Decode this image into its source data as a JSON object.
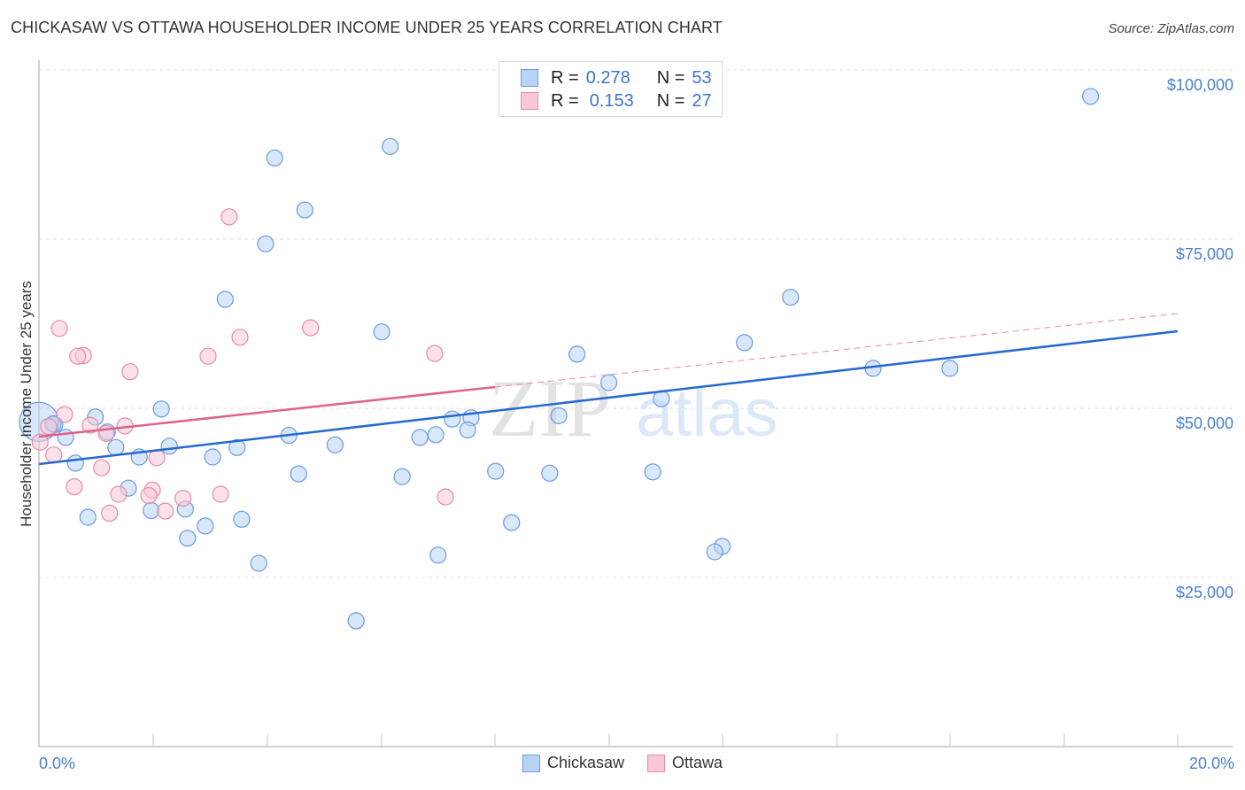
{
  "header": {
    "title": "CHICKASAW VS OTTAWA HOUSEHOLDER INCOME UNDER 25 YEARS CORRELATION CHART",
    "source": "Source: ZipAtlas.com"
  },
  "legend": {
    "rows": [
      {
        "series": "Chickasaw",
        "r_label": "R =",
        "r_value": "0.278",
        "n_label": "N =",
        "n_value": "53",
        "color": "#b8d3f5",
        "border": "#6a9be0"
      },
      {
        "series": "Ottawa",
        "r_label": "R =",
        "r_value": "0.153",
        "n_label": "N =",
        "n_value": "27",
        "color": "#f9c8d6",
        "border": "#e88aa8"
      }
    ]
  },
  "bottom_legend": [
    {
      "label": "Chickasaw",
      "color": "#b8d3f5",
      "border": "#6a9be0"
    },
    {
      "label": "Ottawa",
      "color": "#f9c8d6",
      "border": "#e88aa8"
    }
  ],
  "axes": {
    "ylabel": "Householder Income Under 25 years",
    "yticks": [
      "$100,000",
      "$75,000",
      "$50,000",
      "$25,000"
    ],
    "xticks": [
      "0.0%",
      "20.0%"
    ]
  },
  "watermark": {
    "zip": "ZIP",
    "atlas": "atlas"
  },
  "colors": {
    "blue_line": "#2469d0",
    "pink_line": "#e0608e",
    "blue_fill": "#b8d3f5",
    "pink_fill": "#f9c8d6",
    "tick_text": "#4a7fd4"
  },
  "chart_data": {
    "type": "scatter",
    "title": "CHICKASAW VS OTTAWA HOUSEHOLDER INCOME UNDER 25 YEARS CORRELATION CHART",
    "xlabel": "",
    "ylabel": "Householder Income Under 25 years",
    "xlim": [
      0,
      20
    ],
    "ylim": [
      0,
      100000
    ],
    "x_unit": "%",
    "grid": true,
    "legend_position": "top-center and bottom",
    "series": [
      {
        "name": "Chickasaw",
        "R": 0.278,
        "N": 53,
        "trend": {
          "x": [
            0,
            20
          ],
          "y": [
            41800,
            61500
          ]
        },
        "points": [
          [
            18.47,
            96100
          ],
          [
            6.17,
            88700
          ],
          [
            4.14,
            87000
          ],
          [
            4.67,
            79300
          ],
          [
            3.98,
            74300
          ],
          [
            13.2,
            66400
          ],
          [
            3.27,
            66100
          ],
          [
            6.02,
            61300
          ],
          [
            12.39,
            59700
          ],
          [
            9.45,
            58000
          ],
          [
            14.65,
            55900
          ],
          [
            16.0,
            55900
          ],
          [
            10.01,
            53800
          ],
          [
            10.93,
            51400
          ],
          [
            2.15,
            49900
          ],
          [
            0.99,
            48700
          ],
          [
            9.13,
            48900
          ],
          [
            7.26,
            48400
          ],
          [
            7.59,
            48600
          ],
          [
            0.28,
            47600
          ],
          [
            1.2,
            46500
          ],
          [
            7.53,
            46800
          ],
          [
            4.39,
            46000
          ],
          [
            6.69,
            45700
          ],
          [
            6.97,
            46100
          ],
          [
            0.47,
            45700
          ],
          [
            2.29,
            44400
          ],
          [
            1.35,
            44200
          ],
          [
            3.48,
            44200
          ],
          [
            5.2,
            44600
          ],
          [
            1.76,
            42800
          ],
          [
            3.05,
            42800
          ],
          [
            0.64,
            41900
          ],
          [
            4.56,
            40300
          ],
          [
            6.38,
            39900
          ],
          [
            8.02,
            40700
          ],
          [
            8.97,
            40400
          ],
          [
            10.78,
            40600
          ],
          [
            1.57,
            38200
          ],
          [
            1.97,
            34900
          ],
          [
            2.57,
            35100
          ],
          [
            0.86,
            33900
          ],
          [
            3.56,
            33600
          ],
          [
            8.3,
            33100
          ],
          [
            2.92,
            32600
          ],
          [
            2.61,
            30800
          ],
          [
            12.0,
            29600
          ],
          [
            11.87,
            28800
          ],
          [
            7.01,
            28300
          ],
          [
            3.86,
            27100
          ],
          [
            5.57,
            18600
          ],
          [
            0.0,
            48000
          ],
          [
            0.25,
            47700
          ]
        ]
      },
      {
        "name": "Ottawa",
        "R": 0.153,
        "N": 27,
        "trend": {
          "x": [
            0,
            8
          ],
          "y": [
            45800,
            53200
          ],
          "dashed_extension": {
            "x": [
              8,
              20
            ],
            "y": [
              53200,
              64000
            ]
          }
        },
        "points": [
          [
            3.34,
            78300
          ],
          [
            0.36,
            61800
          ],
          [
            4.77,
            61900
          ],
          [
            3.53,
            60500
          ],
          [
            6.95,
            58100
          ],
          [
            0.78,
            57800
          ],
          [
            0.68,
            57700
          ],
          [
            2.97,
            57700
          ],
          [
            1.6,
            55400
          ],
          [
            0.45,
            49100
          ],
          [
            0.17,
            47300
          ],
          [
            0.9,
            47500
          ],
          [
            1.51,
            47400
          ],
          [
            1.18,
            46300
          ],
          [
            2.07,
            42700
          ],
          [
            0.26,
            43100
          ],
          [
            0.02,
            45000
          ],
          [
            1.1,
            41200
          ],
          [
            0.62,
            38400
          ],
          [
            1.4,
            37300
          ],
          [
            1.99,
            37900
          ],
          [
            1.93,
            37100
          ],
          [
            2.53,
            36700
          ],
          [
            3.19,
            37300
          ],
          [
            7.14,
            36900
          ],
          [
            1.24,
            34500
          ],
          [
            2.22,
            34800
          ]
        ]
      }
    ]
  }
}
